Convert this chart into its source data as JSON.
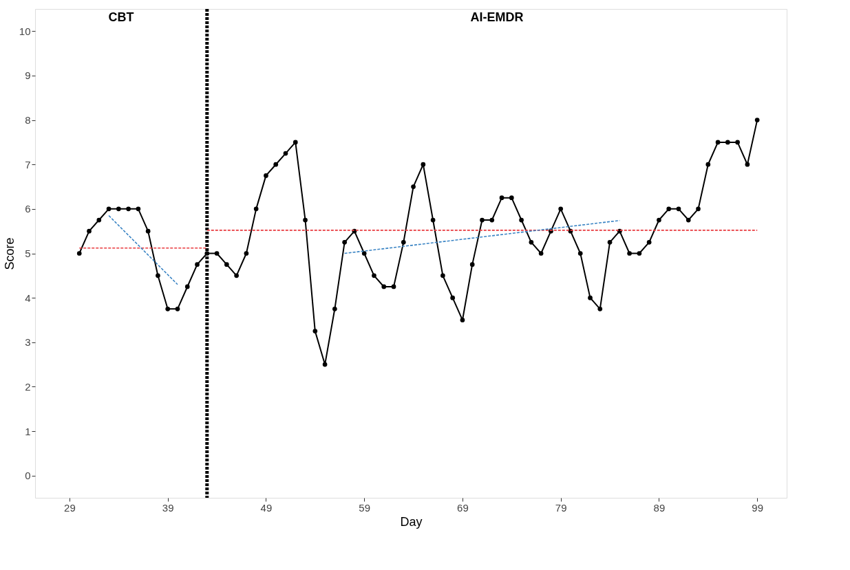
{
  "chart_data": {
    "type": "line",
    "xlabel": "Day",
    "ylabel": "Score",
    "xlim": [
      25.5,
      102
    ],
    "xticks": [
      29,
      39,
      49,
      59,
      69,
      79,
      89,
      99
    ],
    "ylim": [
      -0.5,
      10.5
    ],
    "yticks": [
      0,
      1,
      2,
      3,
      4,
      5,
      6,
      7,
      8,
      9,
      10
    ],
    "grid": false,
    "series": [
      {
        "color": "#000000",
        "marker": "circle",
        "line_style": "solid",
        "x": [
          30,
          31,
          32,
          33,
          34,
          35,
          36,
          37,
          38,
          39,
          40,
          41,
          42,
          43,
          44,
          45,
          46,
          47,
          48,
          49,
          50,
          51,
          52,
          53,
          54,
          55,
          56,
          57,
          58,
          59,
          60,
          61,
          62,
          63,
          64,
          65,
          66,
          67,
          68,
          69,
          70,
          71,
          72,
          73,
          74,
          75,
          76,
          77,
          78,
          79,
          80,
          81,
          82,
          83,
          84,
          85,
          86,
          87,
          88,
          89,
          90,
          91,
          92,
          93,
          94,
          95,
          96,
          97,
          98,
          99
        ],
        "values": [
          5,
          5.5,
          5.75,
          6,
          6,
          6,
          6,
          5.5,
          4.5,
          3.75,
          3.75,
          4.25,
          4.75,
          5,
          5,
          4.75,
          4.5,
          5,
          6,
          6.75,
          7,
          7.25,
          7.5,
          5.75,
          3.25,
          2.5,
          3.75,
          5.25,
          5.5,
          5,
          4.5,
          4.25,
          4.25,
          5.25,
          6.5,
          7,
          5.75,
          4.5,
          4,
          3.5,
          4.75,
          5.75,
          5.75,
          6.25,
          6.25,
          5.75,
          5.25,
          5,
          5.5,
          6,
          5.5,
          5,
          4,
          3.75,
          5.25,
          5.5,
          5,
          5,
          5.25,
          5.75,
          6,
          6,
          5.75,
          6,
          7,
          7.5,
          7.5,
          7.5,
          7,
          8
        ]
      },
      {
        "type": "line",
        "color": "#e8383d",
        "marker": "none",
        "line_style": "dashed",
        "x": [
          30,
          43
        ],
        "values": [
          5.12,
          5.12
        ]
      },
      {
        "type": "line",
        "color": "#e8383d",
        "marker": "none",
        "line_style": "dashed",
        "x": [
          43,
          99
        ],
        "values": [
          5.52,
          5.52
        ]
      },
      {
        "type": "line",
        "color": "#3a84c4",
        "marker": "none",
        "line_style": "dashed",
        "x": [
          33,
          40
        ],
        "values": [
          5.85,
          4.3
        ]
      },
      {
        "type": "line",
        "color": "#3a84c4",
        "marker": "none",
        "line_style": "dashed",
        "x": [
          57,
          85
        ],
        "values": [
          5.0,
          5.74
        ]
      }
    ],
    "ref_lines": [
      {
        "axis": "x",
        "value": 43,
        "color": "#000000",
        "line_style": "dashed"
      }
    ],
    "annotations": [
      "CBT",
      "AI-EMDR"
    ]
  }
}
